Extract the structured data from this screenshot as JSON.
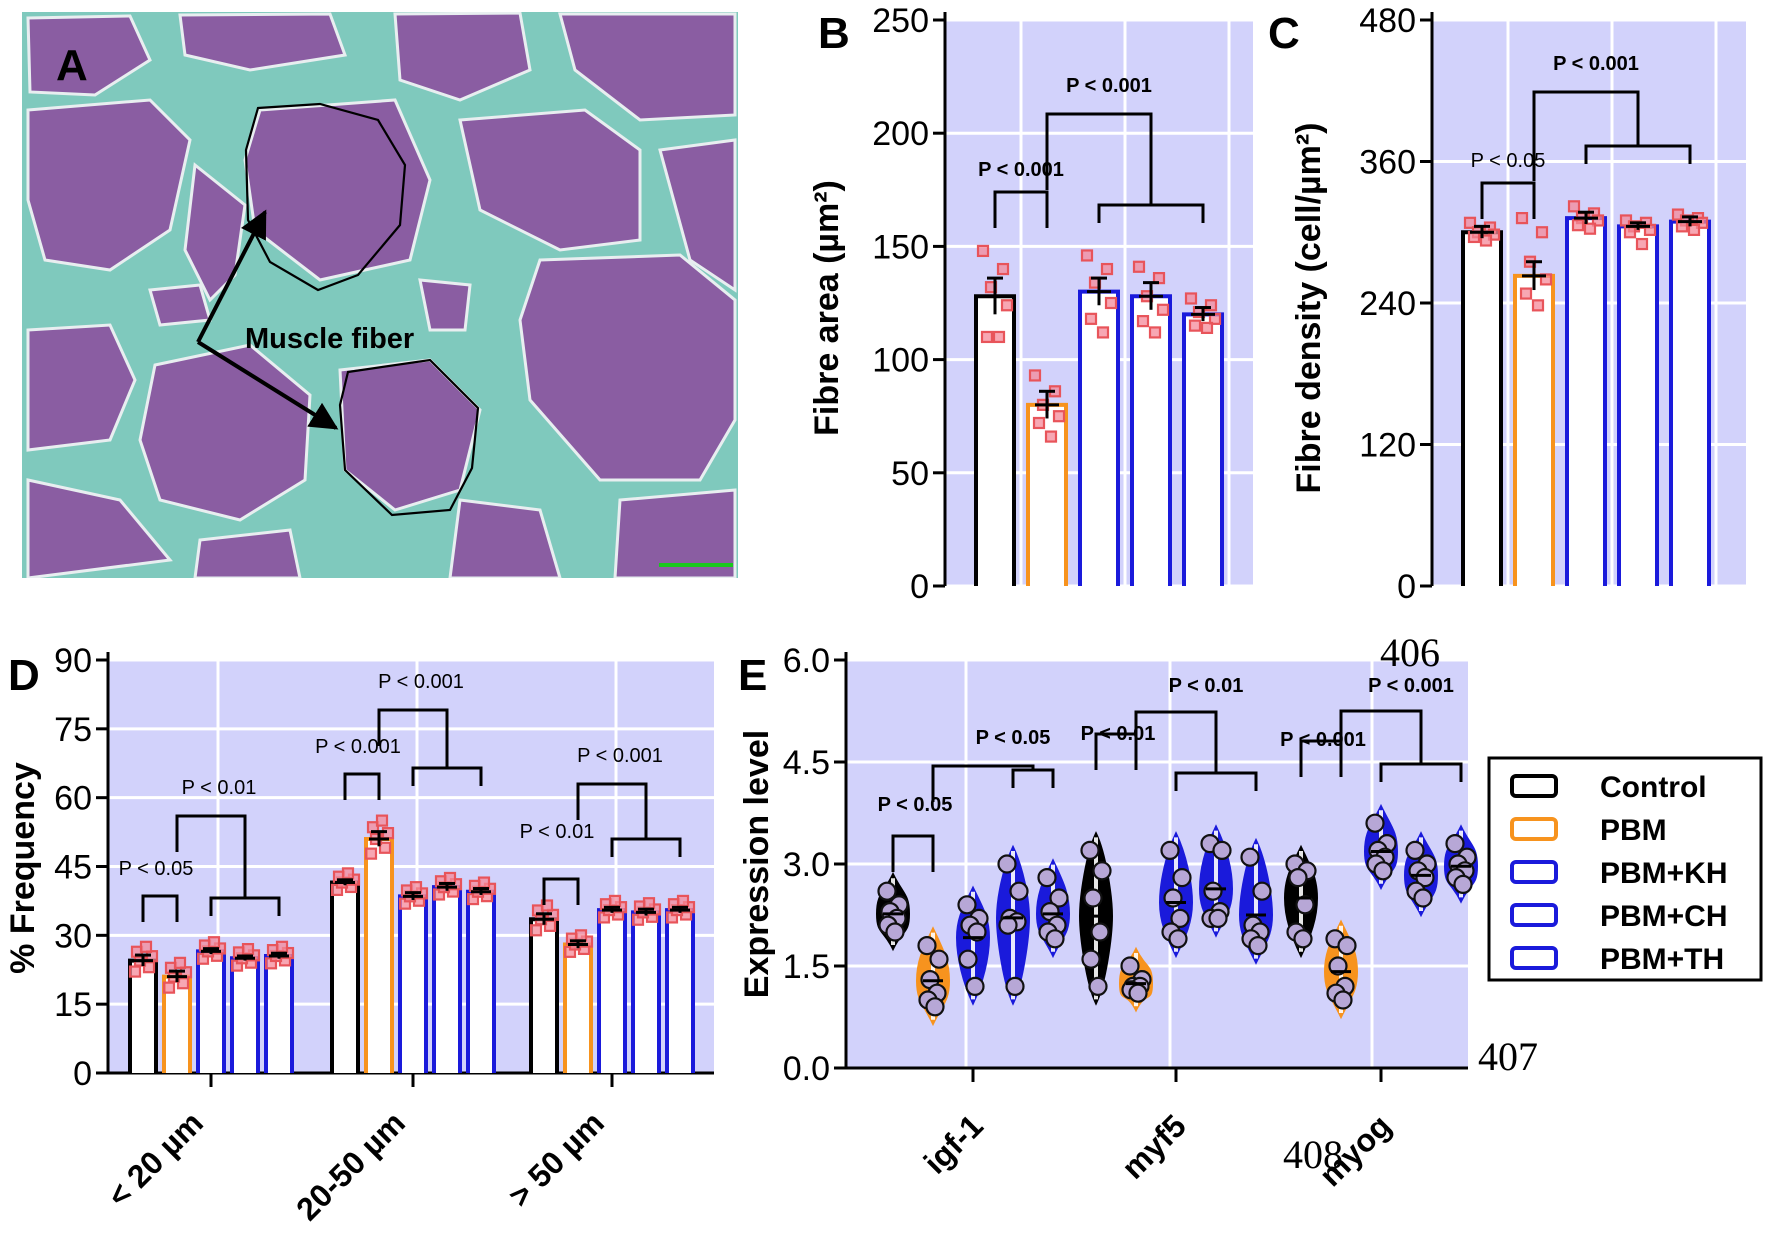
{
  "panelA": {
    "letter": "A",
    "annotation": "Muscle fiber"
  },
  "colors": {
    "Control": "#000000",
    "PBM": "#f7931e",
    "PBM+KH": "#1a1adb",
    "PBM+CH": "#1a1adb",
    "PBM+TH": "#1a1adb",
    "plot_bg": "#d2d2fb",
    "points": "#e8545a"
  },
  "legend": {
    "items": [
      "Control",
      "PBM",
      "PBM+KH",
      "PBM+CH",
      "PBM+TH"
    ]
  },
  "page_numbers": [
    "406",
    "407",
    "408"
  ],
  "chart_data": [
    {
      "panel": "B",
      "type": "bar",
      "ylabel": "Fibre area (µm²)",
      "ylim": [
        0,
        250
      ],
      "yticks": [
        0,
        50,
        100,
        150,
        200,
        250
      ],
      "categories": [
        "Control",
        "PBM",
        "PBM+KH",
        "PBM+CH",
        "PBM+TH"
      ],
      "values": [
        128,
        80,
        130,
        128,
        120
      ],
      "errors": [
        8,
        6,
        6,
        6,
        3
      ],
      "points": [
        [
          148,
          140,
          132,
          124,
          110,
          110
        ],
        [
          93,
          86,
          80,
          75,
          72,
          66
        ],
        [
          146,
          140,
          134,
          125,
          118,
          112
        ],
        [
          141,
          136,
          128,
          122,
          117,
          112
        ],
        [
          127,
          124,
          121,
          118,
          115,
          114
        ]
      ],
      "comparisons": [
        {
          "label": "P < 0.001",
          "groups": [
            "Control",
            "PBM"
          ]
        },
        {
          "label": "P < 0.001",
          "groups": [
            "PBM",
            "PBM+KH..PBM+TH"
          ]
        }
      ]
    },
    {
      "panel": "C",
      "type": "bar",
      "ylabel": "Fibre density (cell/µm²)",
      "ylim": [
        0,
        480
      ],
      "yticks": [
        0,
        120,
        240,
        360,
        480
      ],
      "categories": [
        "Control",
        "PBM",
        "PBM+KH",
        "PBM+CH",
        "PBM+TH"
      ],
      "values": [
        300,
        263,
        312,
        305,
        309
      ],
      "errors": [
        5,
        12,
        5,
        3,
        4
      ],
      "points": [
        [
          308,
          304,
          300,
          298,
          296,
          293
        ],
        [
          312,
          300,
          275,
          260,
          248,
          238
        ],
        [
          322,
          316,
          312,
          310,
          306,
          303
        ],
        [
          310,
          308,
          305,
          302,
          300,
          290
        ],
        [
          315,
          312,
          310,
          308,
          305,
          302
        ]
      ],
      "comparisons": [
        {
          "label": "P < 0.05",
          "groups": [
            "Control",
            "PBM"
          ]
        },
        {
          "label": "P < 0.001",
          "groups": [
            "PBM",
            "PBM+KH..PBM+TH"
          ]
        }
      ]
    },
    {
      "panel": "D",
      "type": "bar",
      "ylabel": "% Frequency",
      "ylim": [
        0,
        90
      ],
      "yticks": [
        0,
        15,
        30,
        45,
        60,
        75,
        90
      ],
      "categories": [
        "< 20 µm",
        "20-50 µm",
        "> 50 µm"
      ],
      "series": [
        {
          "name": "Control",
          "values": [
            24.5,
            41.5,
            33.5
          ],
          "errors": [
            1.2,
            0.6,
            1.2
          ]
        },
        {
          "name": "PBM",
          "values": [
            21,
            51,
            28
          ],
          "errors": [
            1.2,
            1.6,
            0.8
          ]
        },
        {
          "name": "PBM+KH",
          "values": [
            26.5,
            38.5,
            35.5
          ],
          "errors": [
            0.6,
            0.8,
            0.6
          ]
        },
        {
          "name": "PBM+CH",
          "values": [
            25,
            40.5,
            35
          ],
          "errors": [
            0.5,
            0.8,
            0.7
          ]
        },
        {
          "name": "PBM+TH",
          "values": [
            25.5,
            39.5,
            35.5
          ],
          "errors": [
            0.6,
            0.7,
            0.6
          ]
        }
      ],
      "comparisons": [
        {
          "label": "P < 0.05",
          "category": "< 20 µm"
        },
        {
          "label": "P < 0.01",
          "category": "< 20 µm"
        },
        {
          "label": "P < 0.001",
          "category": "20-50 µm"
        },
        {
          "label": "P < 0.001",
          "category": "20-50 µm"
        },
        {
          "label": "P < 0.01",
          "category": "> 50 µm"
        },
        {
          "label": "P < 0.001",
          "category": "> 50 µm"
        }
      ]
    },
    {
      "panel": "E",
      "type": "violin",
      "ylabel": "Expression level",
      "ylim": [
        0,
        6
      ],
      "yticks": [
        "0.0",
        "1.5",
        "3.0",
        "4.5",
        "6.0"
      ],
      "categories": [
        "igf-1",
        "myf5",
        "myog"
      ],
      "series": [
        {
          "name": "Control",
          "points": [
            [
              2.6,
              2.4,
              2.3,
              2.2,
              2.1,
              2.0
            ],
            [
              3.2,
              2.9,
              2.5,
              2.0,
              1.6,
              1.2
            ],
            [
              3.0,
              2.9,
              2.8,
              2.4,
              2.0,
              1.9
            ]
          ]
        },
        {
          "name": "PBM",
          "points": [
            [
              1.8,
              1.6,
              1.3,
              1.1,
              1.0,
              0.9
            ],
            [
              1.5,
              1.3,
              1.2,
              1.2,
              1.15,
              1.1
            ],
            [
              1.9,
              1.8,
              1.5,
              1.2,
              1.1,
              1.0
            ]
          ]
        },
        {
          "name": "PBM+KH",
          "points": [
            [
              2.4,
              2.2,
              2.1,
              2.0,
              1.6,
              1.2
            ],
            [
              3.2,
              2.8,
              2.5,
              2.2,
              2.0,
              1.9
            ],
            [
              3.6,
              3.3,
              3.2,
              3.1,
              3.0,
              2.9
            ]
          ]
        },
        {
          "name": "PBM+CH",
          "points": [
            [
              3.0,
              2.6,
              2.2,
              2.15,
              2.1,
              1.2
            ],
            [
              3.3,
              3.2,
              2.6,
              2.3,
              2.2,
              2.2
            ],
            [
              3.2,
              3.0,
              2.9,
              2.8,
              2.6,
              2.5
            ]
          ]
        },
        {
          "name": "PBM+TH",
          "points": [
            [
              2.8,
              2.5,
              2.3,
              2.1,
              2.0,
              1.9
            ],
            [
              3.1,
              2.6,
              2.1,
              2.0,
              1.9,
              1.8
            ],
            [
              3.3,
              3.1,
              3.0,
              2.9,
              2.8,
              2.7
            ]
          ]
        }
      ],
      "comparisons": [
        {
          "label": "P < 0.05",
          "category": "igf-1"
        },
        {
          "label": "P < 0.05",
          "category": "igf-1"
        },
        {
          "label": "P < 0.01",
          "category": "myf5"
        },
        {
          "label": "P < 0.01",
          "category": "myf5"
        },
        {
          "label": "P < 0.001",
          "category": "myog"
        },
        {
          "label": "P < 0.001",
          "category": "myog"
        }
      ]
    }
  ]
}
